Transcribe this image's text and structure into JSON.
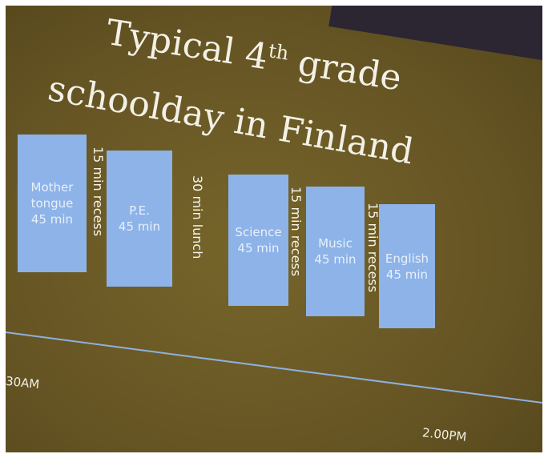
{
  "slide": {
    "title": {
      "line1": "Typical 4",
      "sup": "th",
      "line1b": "grade",
      "line2": "schoolday in Finland"
    },
    "blocks": [
      {
        "lines": [
          "Mother",
          "tongue",
          "45 min"
        ]
      },
      {
        "lines": [
          "P.E.",
          "45 min"
        ]
      },
      {
        "lines": [
          "Science",
          "45 min"
        ]
      },
      {
        "lines": [
          "Music",
          "45 min"
        ]
      },
      {
        "lines": [
          "English",
          "45 min"
        ]
      }
    ],
    "breaks": [
      "15 min recess",
      "30 min lunch",
      "15 min recess",
      "15 min recess"
    ],
    "timeline": {
      "start": "30AM",
      "end": "2.00PM"
    }
  }
}
